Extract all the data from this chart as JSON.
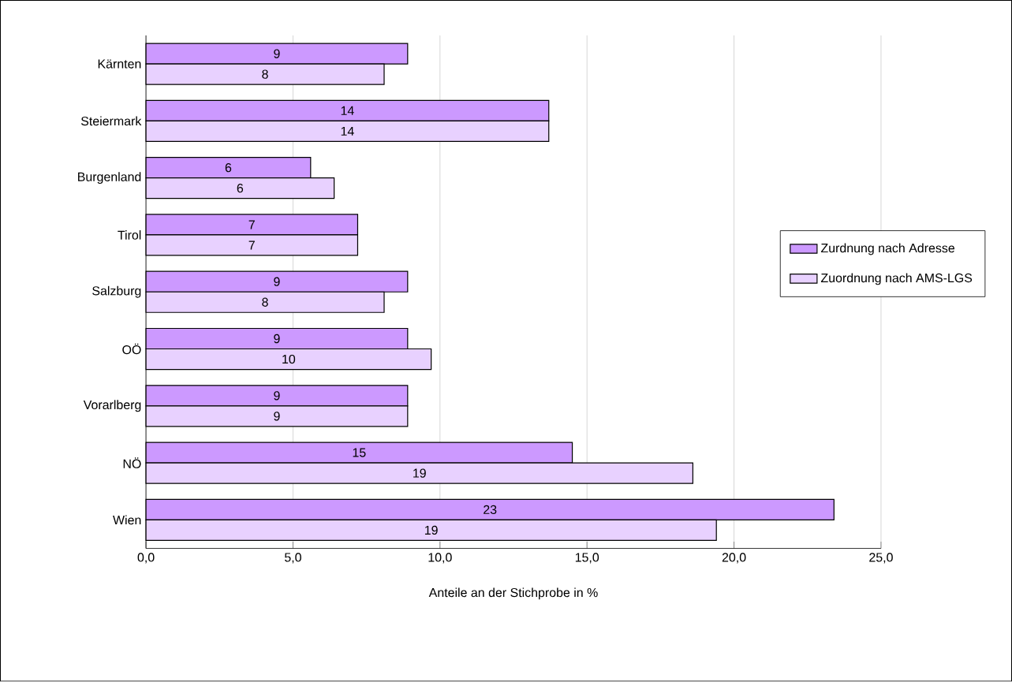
{
  "chart_data": {
    "type": "bar",
    "orientation": "horizontal",
    "xlabel": "Anteile an der Stichprobe in %",
    "categories": [
      "Kärnten",
      "Steiermark",
      "Burgenland",
      "Tirol",
      "Salzburg",
      "OÖ",
      "Vorarlberg",
      "NÖ",
      "Wien"
    ],
    "series": [
      {
        "name": "Zurdnung nach Adresse",
        "color": "#cc99ff",
        "values": [
          8.9,
          13.7,
          5.6,
          7.2,
          8.9,
          8.9,
          8.9,
          14.5,
          23.4
        ],
        "value_labels": [
          "9",
          "14",
          "6",
          "7",
          "9",
          "9",
          "9",
          "15",
          "23"
        ]
      },
      {
        "name": "Zuordnung nach AMS-LGS",
        "color": "#e8d1ff",
        "values": [
          8.1,
          13.7,
          6.4,
          7.2,
          8.1,
          9.7,
          8.9,
          18.6,
          19.4
        ],
        "value_labels": [
          "8",
          "14",
          "6",
          "7",
          "8",
          "10",
          "9",
          "19",
          "19"
        ]
      }
    ],
    "xlim": [
      0,
      25
    ],
    "xticks": [
      {
        "value": 0,
        "label": "0,0"
      },
      {
        "value": 5,
        "label": "5,0"
      },
      {
        "value": 10,
        "label": "10,0"
      },
      {
        "value": 15,
        "label": "15,0"
      },
      {
        "value": 20,
        "label": "20,0"
      },
      {
        "value": 25,
        "label": "25,0"
      }
    ],
    "grid": "x",
    "legend": "right"
  }
}
